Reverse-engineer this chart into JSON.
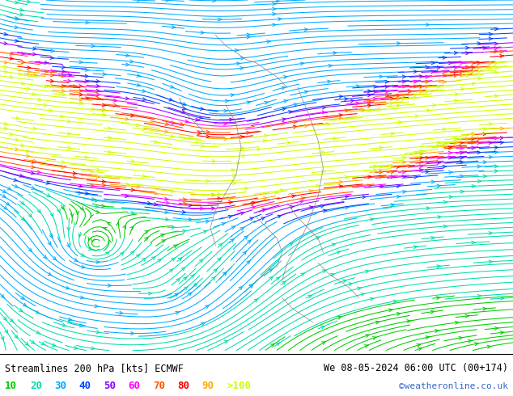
{
  "title_left": "Streamlines 200 hPa [kts] ECMWF",
  "title_right": "We 08-05-2024 06:00 UTC (00+174)",
  "credit": "©weatheronline.co.uk",
  "bg_color": "#ffffff",
  "fig_width": 6.34,
  "fig_height": 4.9,
  "dpi": 100,
  "legend_entries": [
    {
      "val": "10",
      "color": "#00cc00"
    },
    {
      "val": "20",
      "color": "#00ddaa"
    },
    {
      "val": "30",
      "color": "#00aaff"
    },
    {
      "val": "40",
      "color": "#0044ff"
    },
    {
      "val": "50",
      "color": "#8800ff"
    },
    {
      "val": "60",
      "color": "#ff00ff"
    },
    {
      "val": "70",
      "color": "#ff5500"
    },
    {
      "val": "80",
      "color": "#ff0000"
    },
    {
      "val": "90",
      "color": "#ffaa00"
    },
    {
      "val": ">100",
      "color": "#ccff00"
    }
  ],
  "speed_thresholds": [
    10,
    20,
    30,
    40,
    50,
    60,
    70,
    80,
    90,
    100
  ],
  "stream_colors": [
    "#00cc00",
    "#00ddaa",
    "#00aaff",
    "#0044ff",
    "#8800ff",
    "#ff00ff",
    "#ff5500",
    "#ff0000",
    "#ffaa00",
    "#ccff00"
  ]
}
